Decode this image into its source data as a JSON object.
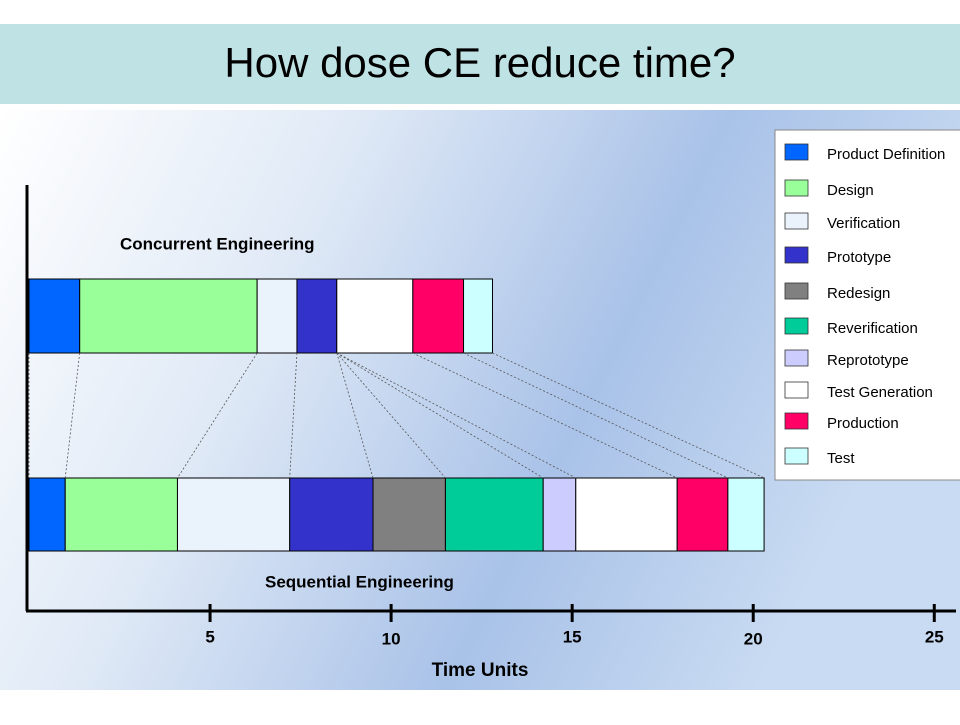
{
  "chart_data": {
    "type": "bar",
    "orientation": "horizontal",
    "stacked": true,
    "title": "How dose CE reduce time?",
    "xlabel": "Time Units",
    "categories": [
      "Concurrent Engineering",
      "Sequential Engineering"
    ],
    "xlim": [
      0,
      25.6
    ],
    "xticks": [
      5,
      10,
      15,
      20,
      25
    ],
    "legend": "right",
    "series": [
      {
        "name": "Product Definition",
        "color": "#0066ff",
        "values": [
          1.4,
          1.0
        ]
      },
      {
        "name": "Design",
        "color": "#99ff99",
        "values": [
          4.9,
          3.1
        ]
      },
      {
        "name": "Verification",
        "color": "#eaf2fc",
        "values": [
          1.1,
          3.1
        ]
      },
      {
        "name": "Prototype",
        "color": "#3333cc",
        "values": [
          1.1,
          2.3
        ]
      },
      {
        "name": "Redesign",
        "color": "#808080",
        "values": [
          null,
          2.0
        ]
      },
      {
        "name": "Reverification",
        "color": "#00cc99",
        "values": [
          null,
          2.7
        ]
      },
      {
        "name": "Reprototype",
        "color": "#ccccff",
        "values": [
          null,
          0.9
        ]
      },
      {
        "name": "Test Generation",
        "color": "#ffffff",
        "values": [
          2.1,
          2.8
        ]
      },
      {
        "name": "Production",
        "color": "#ff0066",
        "values": [
          1.4,
          1.4
        ]
      },
      {
        "name": "Test",
        "color": "#ccffff",
        "values": [
          0.8,
          1.0
        ]
      }
    ]
  }
}
